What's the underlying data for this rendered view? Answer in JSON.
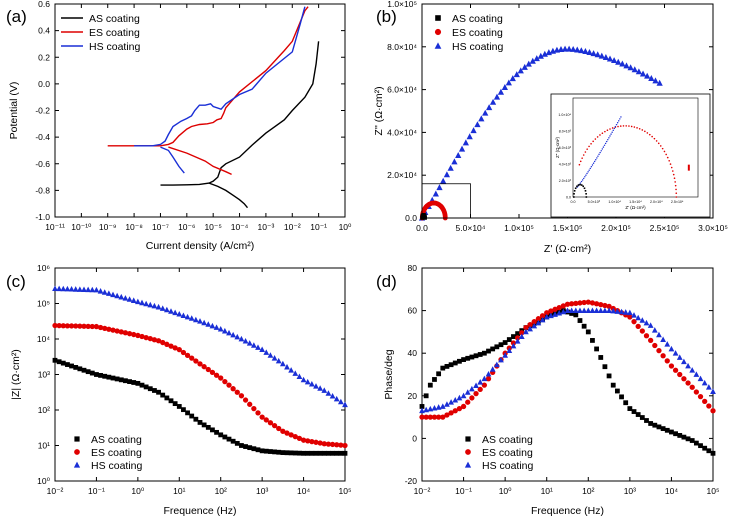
{
  "chart_data": [
    {
      "panel": "(a)",
      "type": "line",
      "xlabel": "Current density (A/cm²)",
      "ylabel": "Potential (V)",
      "xscale": "log",
      "xlim": [
        1e-11,
        1
      ],
      "ylim": [
        -1.0,
        0.6
      ],
      "x_ticks": [
        1e-11,
        1e-10,
        1e-09,
        1e-08,
        1e-07,
        1e-06,
        1e-05,
        0.0001,
        0.001,
        0.01,
        0.1,
        1
      ],
      "x_tick_labels": [
        "10⁻¹¹",
        "10⁻¹⁰",
        "10⁻⁹",
        "10⁻⁸",
        "10⁻⁷",
        "10⁻⁶",
        "10⁻⁵",
        "10⁻⁴",
        "10⁻³",
        "10⁻²",
        "10⁻¹",
        "10⁰"
      ],
      "y_ticks": [
        -1.0,
        -0.8,
        -0.6,
        -0.4,
        -0.2,
        0.0,
        0.2,
        0.4,
        0.6
      ],
      "y_tick_labels": [
        "-1.0",
        "-0.8",
        "-0.6",
        "-0.4",
        "-0.2",
        "0.0",
        "0.2",
        "0.4",
        "0.6"
      ],
      "legend": "top-left",
      "series": [
        {
          "name": "AS coating",
          "color": "#000000",
          "points": [
            [
              1e-07,
              -0.76
            ],
            [
              3e-07,
              -0.76
            ],
            [
              1e-06,
              -0.758
            ],
            [
              3e-06,
              -0.755
            ],
            [
              7e-06,
              -0.745
            ],
            [
              1e-05,
              -0.73
            ],
            [
              1.5e-05,
              -0.7
            ],
            [
              2e-05,
              -0.63
            ],
            [
              3e-05,
              -0.6
            ],
            [
              0.0001,
              -0.55
            ],
            [
              0.0003,
              -0.46
            ],
            [
              0.001,
              -0.37
            ],
            [
              0.005,
              -0.27
            ],
            [
              0.01,
              -0.2
            ],
            [
              0.03,
              -0.1
            ],
            [
              0.06,
              0.0
            ],
            [
              0.08,
              0.15
            ],
            [
              0.1,
              0.32
            ]
          ]
        },
        {
          "name": "AS coating",
          "color": "#000000",
          "points": [
            [
              7e-06,
              -0.745
            ],
            [
              1.5e-05,
              -0.77
            ],
            [
              3e-05,
              -0.8
            ],
            [
              6e-05,
              -0.84
            ],
            [
              0.0001,
              -0.87
            ],
            [
              0.00015,
              -0.9
            ],
            [
              0.0002,
              -0.93
            ]
          ]
        },
        {
          "name": "ES coating",
          "color": "#dd0000",
          "points": [
            [
              1e-09,
              -0.465
            ],
            [
              1e-08,
              -0.465
            ],
            [
              1e-07,
              -0.465
            ],
            [
              2e-07,
              -0.455
            ],
            [
              3e-07,
              -0.44
            ],
            [
              5e-07,
              -0.39
            ],
            [
              1e-06,
              -0.34
            ],
            [
              1.5e-06,
              -0.32
            ],
            [
              3e-06,
              -0.305
            ],
            [
              6e-06,
              -0.3
            ],
            [
              1e-05,
              -0.29
            ],
            [
              1.4e-05,
              -0.27
            ],
            [
              2e-05,
              -0.26
            ],
            [
              2.5e-05,
              -0.22
            ],
            [
              3e-05,
              -0.18
            ],
            [
              0.0001,
              -0.06
            ],
            [
              0.001,
              0.1
            ],
            [
              0.005,
              0.25
            ],
            [
              0.01,
              0.32
            ],
            [
              0.03,
              0.55
            ],
            [
              0.04,
              0.58
            ]
          ]
        },
        {
          "name": "ES coating",
          "color": "#dd0000",
          "points": [
            [
              2e-07,
              -0.475
            ],
            [
              1e-06,
              -0.52
            ],
            [
              5e-06,
              -0.58
            ],
            [
              1e-05,
              -0.62
            ],
            [
              3e-05,
              -0.66
            ],
            [
              5e-05,
              -0.68
            ]
          ]
        },
        {
          "name": "HS coating",
          "color": "#1a2fd6",
          "points": [
            [
              1e-08,
              -0.465
            ],
            [
              5e-08,
              -0.465
            ],
            [
              1e-07,
              -0.455
            ],
            [
              1.5e-07,
              -0.43
            ],
            [
              2e-07,
              -0.38
            ],
            [
              3e-07,
              -0.32
            ],
            [
              6e-07,
              -0.28
            ],
            [
              1e-06,
              -0.26
            ],
            [
              1.5e-06,
              -0.24
            ],
            [
              2e-06,
              -0.2
            ],
            [
              3e-06,
              -0.16
            ],
            [
              5e-06,
              -0.16
            ],
            [
              8e-06,
              -0.15
            ],
            [
              1e-05,
              -0.17
            ],
            [
              2e-05,
              -0.19
            ],
            [
              3e-05,
              -0.15
            ],
            [
              0.0001,
              -0.08
            ],
            [
              0.0003,
              -0.04
            ],
            [
              0.001,
              0.08
            ],
            [
              0.01,
              0.24
            ],
            [
              0.02,
              0.45
            ],
            [
              0.03,
              0.58
            ]
          ]
        },
        {
          "name": "HS coating",
          "color": "#1a2fd6",
          "points": [
            [
              1e-07,
              -0.475
            ],
            [
              2e-07,
              -0.5
            ],
            [
              3e-07,
              -0.55
            ],
            [
              5e-07,
              -0.62
            ],
            [
              8e-07,
              -0.67
            ]
          ]
        }
      ]
    },
    {
      "panel": "(b)",
      "type": "scatter",
      "xlabel": "Z' (Ω·cm²)",
      "ylabel": "Z'' (Ω·cm²)",
      "xlim": [
        0,
        300000
      ],
      "ylim": [
        0,
        100000
      ],
      "x_ticks": [
        0,
        50000,
        100000,
        150000,
        200000,
        250000,
        300000
      ],
      "x_tick_labels": [
        "0.0",
        "5.0×10⁴",
        "1.0×10⁵",
        "1.5×10⁵",
        "2.0×10⁵",
        "2.5×10⁵",
        "3.0×10⁵"
      ],
      "y_ticks": [
        0,
        20000,
        40000,
        60000,
        80000,
        100000
      ],
      "y_tick_labels": [
        "0.0",
        "2.0×10⁴",
        "4.0×10⁴",
        "6.0×10⁴",
        "8.0×10⁴",
        "1.0×10⁵"
      ],
      "legend": "top-left",
      "zoom_box": [
        0,
        50000,
        0,
        16000
      ],
      "series": [
        {
          "name": "AS coating",
          "marker": "square",
          "color": "#000000",
          "arc": {
            "x0": 100,
            "x1": 3200,
            "peak": 1500
          }
        },
        {
          "name": "ES coating",
          "marker": "circle",
          "color": "#e00000",
          "arc": {
            "x0": 300,
            "x1": 24000,
            "peak": 7000
          }
        },
        {
          "name": "HS coating",
          "marker": "triangle",
          "color": "#1a2fd6",
          "points_description": "arc from origin to (245000, 63000), max ~79000 at 150000"
        }
      ],
      "inset": {
        "xlabel": "Z' (Ω·cm²)",
        "ylabel": "Z'' (Ω·cm²)",
        "xlim": [
          0,
          30000
        ],
        "ylim": [
          0,
          12000
        ],
        "x_tick_labels": [
          "0.0",
          "5.0×10³",
          "1.0×10⁴",
          "1.5×10⁴",
          "2.0×10⁴",
          "2.5×10⁴"
        ],
        "y_tick_labels": [
          "0.0",
          "2.0×10³",
          "4.0×10³",
          "6.0×10³",
          "8.0×10³",
          "1.0×10⁴"
        ]
      }
    },
    {
      "panel": "(c)",
      "type": "scatter",
      "xlabel": "Frequence (Hz)",
      "ylabel": "|Z| (Ω·cm²)",
      "xscale": "log",
      "yscale": "log",
      "xlim": [
        0.01,
        100000
      ],
      "ylim": [
        1,
        1000000
      ],
      "x_ticks": [
        0.01,
        0.1,
        1,
        10,
        100,
        1000,
        10000,
        100000
      ],
      "x_tick_labels": [
        "10⁻²",
        "10⁻¹",
        "10⁰",
        "10¹",
        "10²",
        "10³",
        "10⁴",
        "10⁵"
      ],
      "y_ticks": [
        1,
        10,
        100,
        1000,
        10000,
        100000,
        1000000
      ],
      "y_tick_labels": [
        "10⁰",
        "10¹",
        "10²",
        "10³",
        "10⁴",
        "10⁵",
        "10⁶"
      ],
      "legend": "bottom-left",
      "series": [
        {
          "name": "AS coating",
          "marker": "square",
          "color": "#000000",
          "log_points": [
            [
              -2,
              3.4
            ],
            [
              -1,
              3.0
            ],
            [
              0,
              2.75
            ],
            [
              0.5,
              2.5
            ],
            [
              1,
              2.1
            ],
            [
              1.5,
              1.65
            ],
            [
              2,
              1.3
            ],
            [
              2.5,
              1.0
            ],
            [
              3,
              0.85
            ],
            [
              3.5,
              0.8
            ],
            [
              4,
              0.78
            ],
            [
              5,
              0.78
            ]
          ]
        },
        {
          "name": "ES coating",
          "marker": "circle",
          "color": "#e00000",
          "log_points": [
            [
              -2,
              4.38
            ],
            [
              -1,
              4.35
            ],
            [
              0,
              4.1
            ],
            [
              0.5,
              3.95
            ],
            [
              1,
              3.7
            ],
            [
              1.5,
              3.3
            ],
            [
              2,
              2.9
            ],
            [
              2.5,
              2.4
            ],
            [
              3,
              1.8
            ],
            [
              3.5,
              1.4
            ],
            [
              4,
              1.15
            ],
            [
              4.5,
              1.05
            ],
            [
              5,
              1.0
            ]
          ]
        },
        {
          "name": "HS coating",
          "marker": "triangle",
          "color": "#1a2fd6",
          "log_points": [
            [
              -2,
              5.42
            ],
            [
              -1,
              5.38
            ],
            [
              0,
              5.05
            ],
            [
              0.5,
              4.9
            ],
            [
              1,
              4.7
            ],
            [
              1.5,
              4.5
            ],
            [
              2,
              4.28
            ],
            [
              2.5,
              4.0
            ],
            [
              3,
              3.7
            ],
            [
              3.5,
              3.3
            ],
            [
              4,
              2.85
            ],
            [
              4.5,
              2.55
            ],
            [
              5,
              2.15
            ]
          ]
        }
      ]
    },
    {
      "panel": "(d)",
      "type": "scatter",
      "xlabel": "Frequence (Hz)",
      "ylabel": "Phase/deg",
      "xscale": "log",
      "xlim": [
        0.01,
        100000
      ],
      "ylim": [
        -20,
        80
      ],
      "x_ticks": [
        0.01,
        0.1,
        1,
        10,
        100,
        1000,
        10000,
        100000
      ],
      "x_tick_labels": [
        "10⁻²",
        "10⁻¹",
        "10⁰",
        "10¹",
        "10²",
        "10³",
        "10⁴",
        "10⁵"
      ],
      "y_ticks": [
        -20,
        0,
        20,
        40,
        60,
        80
      ],
      "y_tick_labels": [
        "-20",
        "0",
        "20",
        "40",
        "60",
        "80"
      ],
      "legend": "bottom-center",
      "series": [
        {
          "name": "AS coating",
          "marker": "square",
          "color": "#000000",
          "log_points": [
            [
              -2,
              15
            ],
            [
              -1.8,
              25
            ],
            [
              -1.5,
              33
            ],
            [
              -1,
              37
            ],
            [
              -0.5,
              40
            ],
            [
              0,
              45
            ],
            [
              0.5,
              52
            ],
            [
              1,
              57
            ],
            [
              1.4,
              60
            ],
            [
              1.7,
              58
            ],
            [
              2,
              50
            ],
            [
              2.3,
              38
            ],
            [
              2.6,
              25
            ],
            [
              3,
              14
            ],
            [
              3.5,
              7
            ],
            [
              4,
              3
            ],
            [
              4.5,
              -1
            ],
            [
              5,
              -7
            ]
          ]
        },
        {
          "name": "ES coating",
          "marker": "circle",
          "color": "#e00000",
          "log_points": [
            [
              -2,
              10
            ],
            [
              -1.5,
              10
            ],
            [
              -1,
              15
            ],
            [
              -0.5,
              25
            ],
            [
              0,
              40
            ],
            [
              0.5,
              52
            ],
            [
              1,
              59
            ],
            [
              1.5,
              63
            ],
            [
              2,
              64
            ],
            [
              2.5,
              62
            ],
            [
              3,
              57
            ],
            [
              3.5,
              46
            ],
            [
              4,
              34
            ],
            [
              4.5,
              24
            ],
            [
              5,
              13
            ]
          ]
        },
        {
          "name": "HS coating",
          "marker": "triangle",
          "color": "#1a2fd6",
          "log_points": [
            [
              -2,
              13
            ],
            [
              -1.5,
              15
            ],
            [
              -1,
              20
            ],
            [
              -0.5,
              28
            ],
            [
              0,
              39
            ],
            [
              0.5,
              50
            ],
            [
              1,
              57
            ],
            [
              1.5,
              60
            ],
            [
              2,
              60
            ],
            [
              2.5,
              60
            ],
            [
              3,
              59
            ],
            [
              3.5,
              53
            ],
            [
              4,
              42
            ],
            [
              4.5,
              32
            ],
            [
              5,
              22
            ]
          ]
        }
      ]
    }
  ]
}
